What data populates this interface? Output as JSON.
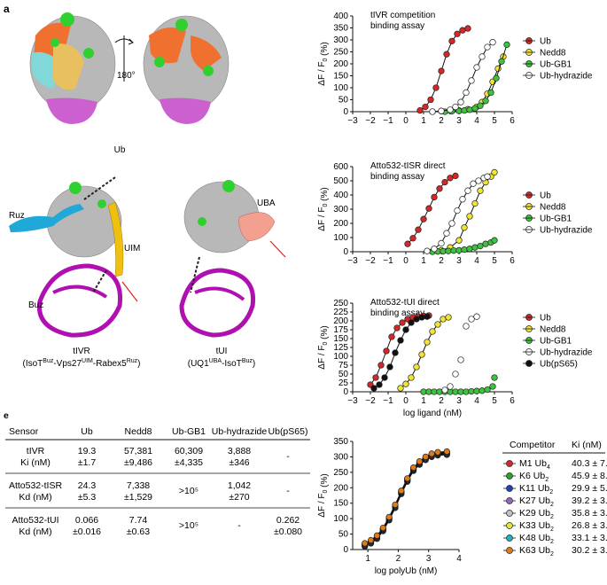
{
  "panels": {
    "a": {
      "label": "a",
      "rotation": "180°",
      "ub_label": "Ub",
      "structure_labels": {
        "ruz": "Ruz",
        "uim": "UIM",
        "buz": "Buz",
        "uba": "UBA",
        "tivr": "tIVR",
        "tivr_sub": "(IsoT",
        "tivr_sup1": "Buz",
        "tivr_mid1": "-Vps27",
        "tivr_sup2": "UIM",
        "tivr_mid2": "-Rabex5",
        "tivr_sup3": "Ruz",
        "tivr_end": ")",
        "tui": "tUI",
        "tui_sub": "(UQ1",
        "tui_sup1": "UBA",
        "tui_mid": "-IsoT",
        "tui_sup2": "Buz",
        "tui_end": ")"
      }
    },
    "e": {
      "label": "e",
      "headers": [
        "Sensor",
        "Ub",
        "Nedd8",
        "Ub-GB1",
        "Ub-hydrazide",
        "Ub(pS65)"
      ],
      "rows": [
        {
          "sensor": [
            "tIVR",
            "Ki (nM)"
          ],
          "cells": [
            [
              "19.3",
              "±1.7"
            ],
            [
              "57,381",
              "±9,486"
            ],
            [
              "60,309",
              "±4,335"
            ],
            [
              "3,888",
              "±346"
            ],
            [
              "-"
            ]
          ]
        },
        {
          "sensor": [
            "Atto532-tISR",
            "Kd (nM)"
          ],
          "cells": [
            [
              "24.3",
              "±5.3"
            ],
            [
              "7,338",
              "±1,529"
            ],
            [
              ">10⁵"
            ],
            [
              "1,042",
              "±270"
            ],
            [
              "-"
            ]
          ]
        },
        {
          "sensor": [
            "Atto532-tUI",
            "Kd (nM)"
          ],
          "cells": [
            [
              "0.066",
              "±0.016"
            ],
            [
              "7.74",
              "±0.63"
            ],
            [
              ">10⁵"
            ],
            [
              "-"
            ],
            [
              "0.262",
              "±0.080"
            ]
          ]
        }
      ]
    },
    "f_table": {
      "headers": [
        "Competitor",
        "Ki (nM)"
      ],
      "rows": [
        {
          "name": "M1 Ub4",
          "ki": "40.3 ± 7.0",
          "color": "#d62728"
        },
        {
          "name": "K6 Ub2",
          "ki": "45.9 ± 8.0",
          "color": "#2ca02c"
        },
        {
          "name": "K11 Ub2",
          "ki": "29.9 ± 5.1",
          "color": "#1f3fbf"
        },
        {
          "name": "K27 Ub2",
          "ki": "39.2 ± 3.2",
          "color": "#9467bd"
        },
        {
          "name": "K29 Ub2",
          "ki": "35.8 ± 3.3",
          "color": "#c0c0c0"
        },
        {
          "name": "K33 Ub2",
          "ki": "26.8 ± 3.3",
          "color": "#e5e535"
        },
        {
          "name": "K48 Ub2",
          "ki": "33.1 ± 3.1",
          "color": "#20b0c0"
        },
        {
          "name": "K63 Ub2",
          "ki": "30.2 ± 3.8",
          "color": "#e07b1a"
        }
      ]
    }
  },
  "chart_data": [
    {
      "id": "b",
      "type": "scatter",
      "label": "b",
      "title": "tIVR competition\nbinding assay",
      "ylabel": "ΔF / F0 (%)",
      "xlabel": "",
      "xlim": [
        -3,
        6
      ],
      "ylim": [
        0,
        400
      ],
      "xticks": [
        -3,
        -2,
        -1,
        0,
        1,
        2,
        3,
        4,
        5,
        6
      ],
      "yticks": [
        0,
        50,
        100,
        150,
        200,
        250,
        300,
        350,
        400
      ],
      "series": [
        {
          "name": "Ub",
          "color": "#d62728",
          "x": [
            0.8,
            1.1,
            1.4,
            1.7,
            2.0,
            2.3,
            2.6,
            2.9,
            3.2,
            3.5
          ],
          "y": [
            5,
            20,
            50,
            100,
            170,
            240,
            295,
            325,
            340,
            348
          ],
          "fit": true
        },
        {
          "name": "Nedd8",
          "color": "#f2e530",
          "x": [
            1.5,
            2.0,
            2.5,
            3.0,
            3.5,
            4.0,
            4.3,
            4.6,
            4.9,
            5.2,
            5.5
          ],
          "y": [
            0,
            2,
            3,
            5,
            10,
            20,
            40,
            75,
            125,
            180,
            230
          ],
          "fit": true
        },
        {
          "name": "Ub-GB1",
          "color": "#3cc43c",
          "x": [
            2.2,
            2.6,
            3.0,
            3.3,
            3.6,
            3.9,
            4.2,
            4.5,
            4.8,
            5.1,
            5.4,
            5.7
          ],
          "y": [
            0,
            2,
            3,
            5,
            8,
            14,
            25,
            45,
            80,
            140,
            210,
            280
          ],
          "fit": true
        },
        {
          "name": "Ub-hydrazide",
          "color": "#ffffff",
          "x": [
            1.5,
            2.0,
            2.5,
            2.8,
            3.1,
            3.4,
            3.7,
            4.0,
            4.3,
            4.6,
            4.9
          ],
          "y": [
            0,
            3,
            8,
            20,
            40,
            80,
            130,
            185,
            230,
            270,
            290
          ],
          "fit": true
        }
      ]
    },
    {
      "id": "c",
      "type": "scatter",
      "label": "c",
      "title": "Atto532-tISR direct\nbinding assay",
      "ylabel": "ΔF / F0 (%)",
      "xlabel": "",
      "xlim": [
        -3,
        6
      ],
      "ylim": [
        0,
        600
      ],
      "xticks": [
        -3,
        -2,
        -1,
        0,
        1,
        2,
        3,
        4,
        5,
        6
      ],
      "yticks": [
        0,
        100,
        200,
        300,
        400,
        500,
        600
      ],
      "series": [
        {
          "name": "Ub",
          "color": "#d62728",
          "x": [
            0.1,
            0.4,
            0.7,
            1.0,
            1.3,
            1.6,
            1.9,
            2.2,
            2.5,
            2.8
          ],
          "y": [
            55,
            95,
            155,
            230,
            305,
            385,
            445,
            490,
            520,
            535
          ],
          "fit": true
        },
        {
          "name": "Nedd8",
          "color": "#f2e530",
          "x": [
            1.5,
            2.0,
            2.5,
            3.0,
            3.3,
            3.6,
            3.9,
            4.2,
            4.5,
            4.8,
            5.0
          ],
          "y": [
            2,
            10,
            30,
            80,
            170,
            250,
            340,
            430,
            490,
            530,
            560
          ],
          "fit": true
        },
        {
          "name": "Ub-GB1",
          "color": "#3cc43c",
          "x": [
            1.5,
            1.8,
            2.1,
            2.4,
            2.7,
            3.0,
            3.3,
            3.6,
            3.9,
            4.2,
            4.5,
            4.8,
            5.0
          ],
          "y": [
            0,
            2,
            3,
            5,
            8,
            10,
            15,
            20,
            30,
            40,
            55,
            65,
            80
          ],
          "fit": false
        },
        {
          "name": "Ub-hydrazide",
          "color": "#ffffff",
          "x": [
            1.2,
            1.6,
            2.0,
            2.3,
            2.6,
            2.9,
            3.2,
            3.5,
            3.8,
            4.1,
            4.4,
            4.6
          ],
          "y": [
            5,
            20,
            60,
            130,
            200,
            290,
            370,
            430,
            480,
            500,
            520,
            530
          ],
          "fit": true
        }
      ]
    },
    {
      "id": "d",
      "type": "scatter",
      "label": "d",
      "title": "Atto532-tUI direct\nbinding assay",
      "ylabel": "ΔF / F0 (%)",
      "xlabel": "log ligand (nM)",
      "xlim": [
        -3,
        6
      ],
      "ylim": [
        0,
        250
      ],
      "xticks": [
        -3,
        -2,
        -1,
        0,
        1,
        2,
        3,
        4,
        5,
        6
      ],
      "yticks": [
        0,
        25,
        50,
        75,
        100,
        125,
        150,
        175,
        200,
        225,
        250
      ],
      "series": [
        {
          "name": "Ub",
          "color": "#d62728",
          "x": [
            -2.0,
            -1.7,
            -1.4,
            -1.1,
            -0.8,
            -0.5,
            -0.2,
            0.1,
            0.4,
            0.7,
            1.0,
            1.3
          ],
          "y": [
            20,
            40,
            75,
            115,
            155,
            180,
            195,
            205,
            210,
            212,
            214,
            215
          ],
          "fit": true
        },
        {
          "name": "Nedd8",
          "color": "#f2e530",
          "x": [
            -0.3,
            0.0,
            0.3,
            0.6,
            0.9,
            1.2,
            1.5,
            1.8,
            2.1,
            2.4
          ],
          "y": [
            10,
            22,
            40,
            70,
            105,
            140,
            170,
            190,
            205,
            210
          ],
          "fit": true
        },
        {
          "name": "Ub-GB1",
          "color": "#3cc43c",
          "x": [
            1.0,
            1.3,
            1.6,
            1.9,
            2.2,
            2.5,
            2.8,
            3.1,
            3.4,
            3.7,
            4.0,
            4.3,
            4.6,
            4.9,
            5.0
          ],
          "y": [
            0,
            0,
            0,
            0,
            0,
            0,
            0,
            0,
            0,
            1,
            2,
            3,
            6,
            15,
            40
          ],
          "fit": false
        },
        {
          "name": "Ub-hydrazide",
          "color": "#ffffff",
          "x": [
            2.2,
            2.5,
            2.8,
            3.1,
            3.4,
            3.7,
            4.0
          ],
          "y": [
            5,
            15,
            50,
            90,
            185,
            205,
            212
          ],
          "fit": false
        },
        {
          "name": "Ub(pS65)",
          "color": "#111111",
          "x": [
            -1.8,
            -1.5,
            -1.2,
            -0.9,
            -0.6,
            -0.3,
            0.0,
            0.3,
            0.6,
            0.9,
            1.2
          ],
          "y": [
            10,
            20,
            40,
            70,
            110,
            145,
            175,
            195,
            205,
            210,
            212
          ],
          "fit": true
        }
      ]
    },
    {
      "id": "f",
      "type": "scatter",
      "label": "f",
      "title": "",
      "ylabel": "ΔF / F0 (%)",
      "xlabel": "log polyUb (nM)",
      "xlim": [
        0.5,
        4
      ],
      "ylim": [
        0,
        350
      ],
      "xticks": [
        1,
        2,
        3,
        4
      ],
      "yticks": [
        0,
        50,
        100,
        150,
        200,
        250,
        300,
        350
      ],
      "series_x": [
        0.9,
        1.1,
        1.3,
        1.5,
        1.7,
        1.9,
        2.1,
        2.3,
        2.5,
        2.7,
        2.9,
        3.1,
        3.3,
        3.6
      ],
      "series_y": [
        15,
        25,
        40,
        65,
        100,
        140,
        185,
        225,
        260,
        280,
        295,
        305,
        310,
        312
      ],
      "series": [
        {
          "name": "M1 Ub4",
          "color": "#d62728"
        },
        {
          "name": "K6 Ub2",
          "color": "#2ca02c"
        },
        {
          "name": "K11 Ub2",
          "color": "#1f3fbf"
        },
        {
          "name": "K27 Ub2",
          "color": "#9467bd"
        },
        {
          "name": "K29 Ub2",
          "color": "#c0c0c0"
        },
        {
          "name": "K33 Ub2",
          "color": "#e5e535"
        },
        {
          "name": "K48 Ub2",
          "color": "#20b0c0"
        },
        {
          "name": "K63 Ub2",
          "color": "#e07b1a"
        }
      ]
    }
  ]
}
